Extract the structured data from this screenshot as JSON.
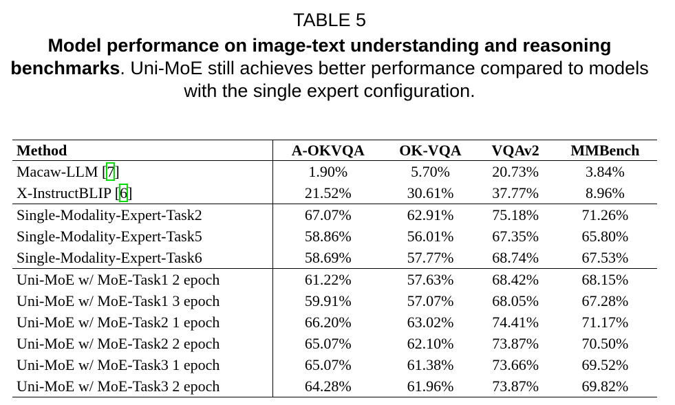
{
  "title": "TABLE 5",
  "caption": {
    "bold": "Model performance on image-text understanding and reasoning benchmarks",
    "text": ". Uni-MoE still achieves better performance compared to models with the single expert configuration."
  },
  "table": {
    "header": [
      "Method",
      "A-OKVQA",
      "OK-VQA",
      "VQAv2",
      "MMBench"
    ],
    "groups": [
      [
        {
          "method": [
            "Macaw-LLM [",
            "7",
            "]"
          ],
          "values": [
            "1.90%",
            "5.70%",
            "20.73%",
            "3.84%"
          ]
        },
        {
          "method": [
            "X-InstructBLIP [",
            "6",
            "]"
          ],
          "values": [
            "21.52%",
            "30.61%",
            "37.77%",
            "8.96%"
          ]
        }
      ],
      [
        {
          "method": [
            "Single-Modality-Expert-Task2"
          ],
          "values": [
            "67.07%",
            "62.91%",
            "75.18%",
            "71.26%"
          ]
        },
        {
          "method": [
            "Single-Modality-Expert-Task5"
          ],
          "values": [
            "58.86%",
            "56.01%",
            "67.35%",
            "65.80%"
          ]
        },
        {
          "method": [
            "Single-Modality-Expert-Task6"
          ],
          "values": [
            "58.69%",
            "57.77%",
            "68.74%",
            "67.53%"
          ]
        }
      ],
      [
        {
          "method": [
            "Uni-MoE w/ MoE-Task1 2 epoch"
          ],
          "values": [
            "61.22%",
            "57.63%",
            "68.42%",
            "68.15%"
          ]
        },
        {
          "method": [
            "Uni-MoE w/ MoE-Task1 3 epoch"
          ],
          "values": [
            "59.91%",
            "57.07%",
            "68.05%",
            "67.28%"
          ]
        },
        {
          "method": [
            "Uni-MoE w/ MoE-Task2 1 epoch"
          ],
          "values": [
            "66.20%",
            "63.02%",
            "74.41%",
            "71.17%"
          ]
        },
        {
          "method": [
            "Uni-MoE w/ MoE-Task2 2 epoch"
          ],
          "values": [
            "65.07%",
            "62.10%",
            "73.87%",
            "70.50%"
          ]
        },
        {
          "method": [
            "Uni-MoE w/ MoE-Task3 1 epoch"
          ],
          "values": [
            "65.07%",
            "61.38%",
            "73.66%",
            "69.52%"
          ]
        },
        {
          "method": [
            "Uni-MoE w/ MoE-Task3 2 epoch"
          ],
          "values": [
            "64.28%",
            "61.96%",
            "73.87%",
            "69.82%"
          ]
        }
      ]
    ]
  }
}
